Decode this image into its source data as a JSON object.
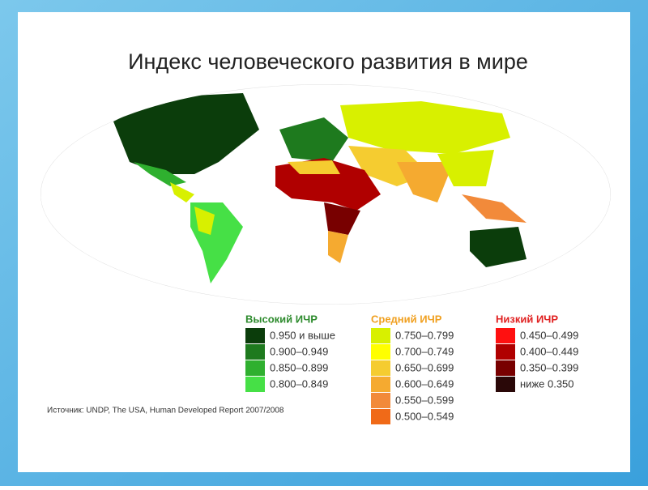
{
  "title": "Индекс человеческого развития в мире",
  "legend": {
    "groups": [
      {
        "title": "Высокий ИЧР",
        "color": "#2e8b2e",
        "items": [
          {
            "label": "0.950 и выше",
            "color": "#0b3d0b"
          },
          {
            "label": "0.900–0.949",
            "color": "#1e7a1e"
          },
          {
            "label": "0.850–0.899",
            "color": "#2fb02f"
          },
          {
            "label": "0.800–0.849",
            "color": "#46e046"
          }
        ]
      },
      {
        "title": "Средний ИЧР",
        "color": "#f0a020",
        "items": [
          {
            "label": "0.750–0.799",
            "color": "#d8f000"
          },
          {
            "label": "0.700–0.749",
            "color": "#ffff00"
          },
          {
            "label": "0.650–0.699",
            "color": "#f5cc30"
          },
          {
            "label": "0.600–0.649",
            "color": "#f5aa30"
          },
          {
            "label": "0.550–0.599",
            "color": "#f28a3a"
          },
          {
            "label": "0.500–0.549",
            "color": "#f06a18"
          }
        ]
      },
      {
        "title": "Низкий ИЧР",
        "color": "#e02020",
        "items": [
          {
            "label": "0.450–0.499",
            "color": "#ff1010"
          },
          {
            "label": "0.400–0.449",
            "color": "#b00000"
          },
          {
            "label": "0.350–0.399",
            "color": "#780000"
          },
          {
            "label": "ниже 0.350",
            "color": "#2a0808"
          }
        ]
      }
    ]
  },
  "source": "Источник: UNDP, The USA, Human Developed Report 2007/2008"
}
